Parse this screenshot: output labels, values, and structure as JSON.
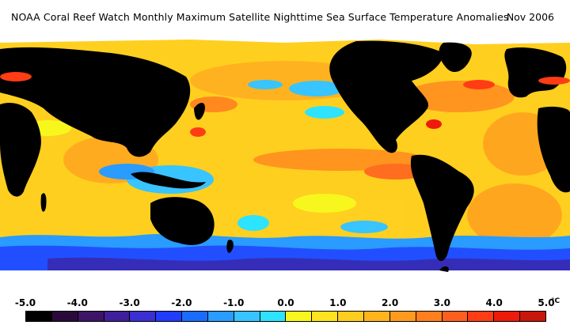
{
  "header": {
    "title": "NOAA Coral Reef Watch Monthly Maximum Satellite Nighttime Sea Surface Temperature Anomalies",
    "date": "Nov 2006"
  },
  "legend": {
    "ticks": [
      "-5.0",
      "-4.0",
      "-3.0",
      "-2.0",
      "-1.0",
      "0.0",
      "1.0",
      "2.0",
      "3.0",
      "4.0",
      "5.0"
    ],
    "unit": "°C",
    "colors": [
      "#000000",
      "#2a0a3a",
      "#3d1466",
      "#3f1f9a",
      "#3a2fd0",
      "#1f3cff",
      "#1a6cff",
      "#2a9bff",
      "#38c4ff",
      "#2de3ff",
      "#f7f71e",
      "#ffe31e",
      "#ffcd1e",
      "#ffb41e",
      "#ff9a1e",
      "#ff7f1e",
      "#ff5f1e",
      "#ff3c14",
      "#ee1a0a",
      "#c8160a"
    ]
  },
  "map": {
    "land_color": "#000000",
    "ice_color": "#ffffff",
    "ocean_base_color": "#ffc22a"
  }
}
